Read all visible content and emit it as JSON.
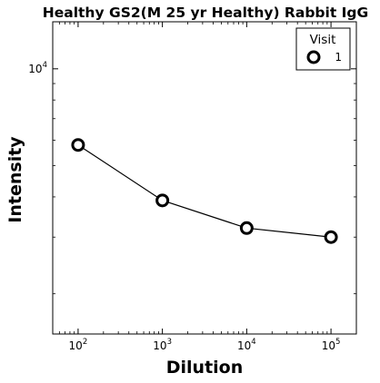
{
  "chart_data": {
    "type": "line",
    "title": "Healthy GS2(M 25 yr Healthy) Rabbit IgG",
    "xlabel": "Dilution",
    "ylabel": "Intensity",
    "x_scale": "log",
    "y_scale": "log",
    "xlim": [
      50,
      200000
    ],
    "ylim": [
      1500,
      14000
    ],
    "x_ticks": [
      {
        "value": 100,
        "base": "10",
        "exp": "2"
      },
      {
        "value": 1000,
        "base": "10",
        "exp": "3"
      },
      {
        "value": 10000,
        "base": "10",
        "exp": "4"
      },
      {
        "value": 100000,
        "base": "10",
        "exp": "5"
      }
    ],
    "y_ticks": [
      {
        "value": 10000,
        "base": "10",
        "exp": "4"
      }
    ],
    "legend": {
      "title": "Visit",
      "placement": "top-right"
    },
    "series": [
      {
        "name": "1",
        "color": "#000000",
        "marker": "open-circle",
        "x": [
          100,
          1000,
          10000,
          100000
        ],
        "y": [
          5800,
          3900,
          3200,
          3000
        ]
      }
    ]
  }
}
